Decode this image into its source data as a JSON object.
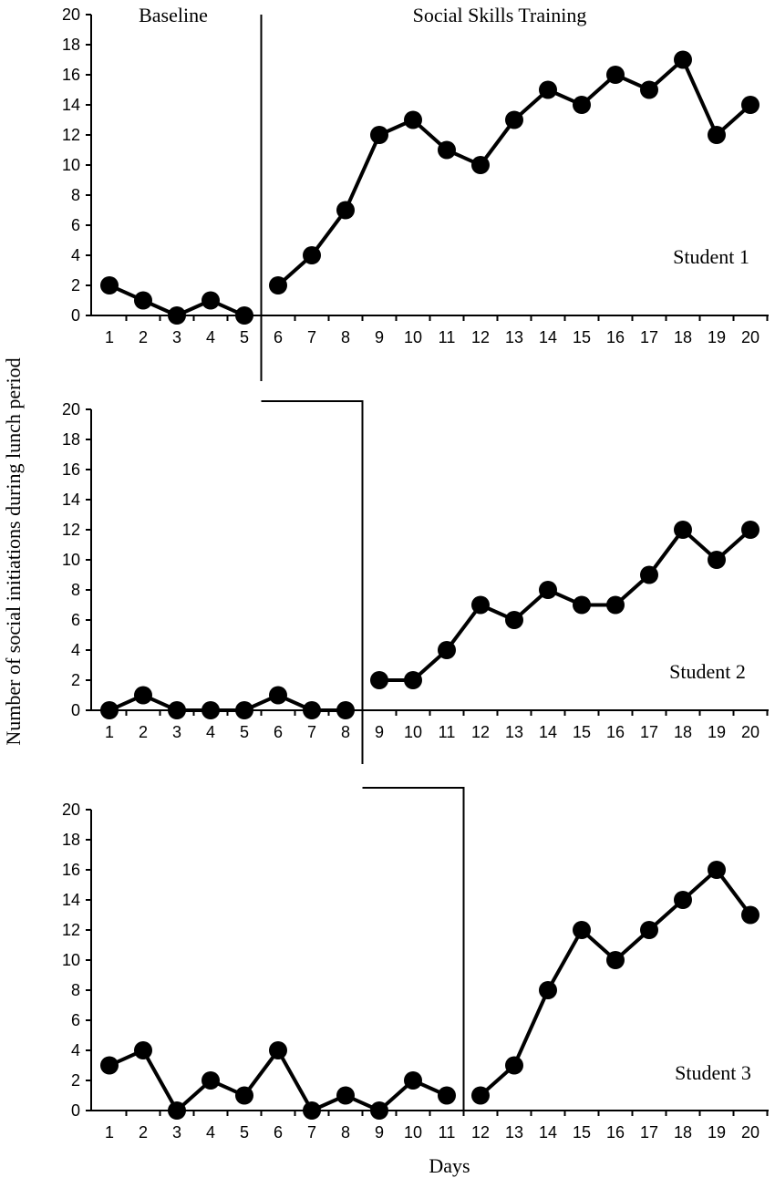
{
  "figure": {
    "ylabel": "Number of social initiations during lunch period",
    "xlabel": "Days",
    "phase_labels": [
      "Baseline",
      "Social Skills Training"
    ]
  },
  "chart_data": [
    {
      "type": "line",
      "panel_label": "Student 1",
      "x": [
        1,
        2,
        3,
        4,
        5,
        6,
        7,
        8,
        9,
        10,
        11,
        12,
        13,
        14,
        15,
        16,
        17,
        18,
        19,
        20
      ],
      "ylim": [
        0,
        20
      ],
      "yticks": [
        0,
        2,
        4,
        6,
        8,
        10,
        12,
        14,
        16,
        18,
        20
      ],
      "phase_change_after_day": 5,
      "segments": [
        {
          "phase": "Baseline",
          "days": [
            1,
            2,
            3,
            4,
            5
          ],
          "values": [
            2,
            1,
            0,
            1,
            0
          ]
        },
        {
          "phase": "Social Skills Training",
          "days": [
            6,
            7,
            8,
            9,
            10,
            11,
            12,
            13,
            14,
            15,
            16,
            17,
            18,
            19,
            20
          ],
          "values": [
            2,
            4,
            7,
            12,
            13,
            11,
            10,
            13,
            15,
            14,
            16,
            15,
            17,
            12,
            14
          ]
        }
      ]
    },
    {
      "type": "line",
      "panel_label": "Student 2",
      "x": [
        1,
        2,
        3,
        4,
        5,
        6,
        7,
        8,
        9,
        10,
        11,
        12,
        13,
        14,
        15,
        16,
        17,
        18,
        19,
        20
      ],
      "ylim": [
        0,
        20
      ],
      "yticks": [
        0,
        2,
        4,
        6,
        8,
        10,
        12,
        14,
        16,
        18,
        20
      ],
      "phase_change_after_day": 8,
      "segments": [
        {
          "phase": "Baseline",
          "days": [
            1,
            2,
            3,
            4,
            5,
            6,
            7,
            8
          ],
          "values": [
            0,
            1,
            0,
            0,
            0,
            1,
            0,
            0
          ]
        },
        {
          "phase": "Social Skills Training",
          "days": [
            9,
            10,
            11,
            12,
            13,
            14,
            15,
            16,
            17,
            18,
            19,
            20
          ],
          "values": [
            2,
            2,
            4,
            7,
            6,
            8,
            7,
            7,
            9,
            12,
            10,
            12
          ]
        }
      ]
    },
    {
      "type": "line",
      "panel_label": "Student 3",
      "x": [
        1,
        2,
        3,
        4,
        5,
        6,
        7,
        8,
        9,
        10,
        11,
        12,
        13,
        14,
        15,
        16,
        17,
        18,
        19,
        20
      ],
      "ylim": [
        0,
        20
      ],
      "yticks": [
        0,
        2,
        4,
        6,
        8,
        10,
        12,
        14,
        16,
        18,
        20
      ],
      "phase_change_after_day": 11,
      "segments": [
        {
          "phase": "Baseline",
          "days": [
            1,
            2,
            3,
            4,
            5,
            6,
            7,
            8,
            9,
            10,
            11
          ],
          "values": [
            3,
            4,
            0,
            2,
            1,
            4,
            0,
            1,
            0,
            2,
            1
          ]
        },
        {
          "phase": "Social Skills Training",
          "days": [
            12,
            13,
            14,
            15,
            16,
            17,
            18,
            19,
            20
          ],
          "values": [
            1,
            3,
            8,
            12,
            10,
            12,
            14,
            16,
            13
          ]
        }
      ]
    }
  ]
}
